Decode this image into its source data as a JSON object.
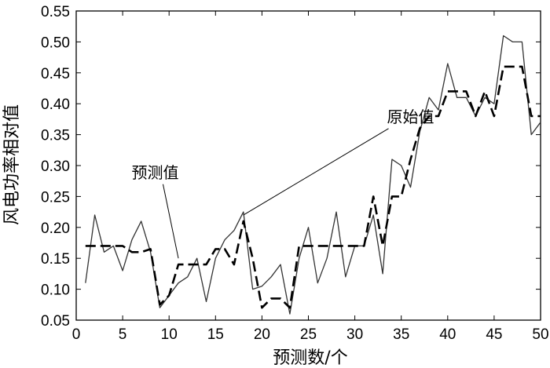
{
  "chart_data": {
    "type": "line",
    "xlabel": "预测数/个",
    "ylabel": "风电功率相对值",
    "xlim": [
      0,
      50
    ],
    "ylim": [
      0.05,
      0.55
    ],
    "xticks": [
      "0",
      "5",
      "10",
      "15",
      "20",
      "25",
      "30",
      "35",
      "40",
      "45",
      "50"
    ],
    "yticks": [
      "0.05",
      "0.10",
      "0.15",
      "0.20",
      "0.25",
      "0.30",
      "0.35",
      "0.40",
      "0.45",
      "0.50",
      "0.55"
    ],
    "grid": false,
    "x": [
      1,
      2,
      3,
      4,
      5,
      6,
      7,
      8,
      9,
      10,
      11,
      12,
      13,
      14,
      15,
      16,
      17,
      18,
      19,
      20,
      21,
      22,
      23,
      24,
      25,
      26,
      27,
      28,
      29,
      30,
      31,
      32,
      33,
      34,
      35,
      36,
      37,
      38,
      39,
      40,
      41,
      42,
      43,
      44,
      45,
      46,
      47,
      48,
      49,
      50
    ],
    "series": [
      {
        "style": "solid",
        "values": [
          0.11,
          0.22,
          0.16,
          0.17,
          0.13,
          0.18,
          0.21,
          0.16,
          0.07,
          0.09,
          0.11,
          0.12,
          0.15,
          0.08,
          0.15,
          0.18,
          0.195,
          0.225,
          0.1,
          0.105,
          0.12,
          0.14,
          0.06,
          0.15,
          0.2,
          0.11,
          0.15,
          0.225,
          0.12,
          0.17,
          0.17,
          0.22,
          0.125,
          0.31,
          0.3,
          0.265,
          0.355,
          0.41,
          0.39,
          0.465,
          0.41,
          0.41,
          0.38,
          0.41,
          0.4,
          0.51,
          0.5,
          0.5,
          0.35,
          0.37
        ]
      },
      {
        "style": "dashed",
        "values": [
          0.17,
          0.17,
          0.17,
          0.17,
          0.17,
          0.16,
          0.16,
          0.165,
          0.075,
          0.09,
          0.14,
          0.14,
          0.14,
          0.14,
          0.165,
          0.165,
          0.14,
          0.21,
          0.15,
          0.07,
          0.085,
          0.085,
          0.07,
          0.17,
          0.17,
          0.17,
          0.17,
          0.17,
          0.17,
          0.17,
          0.17,
          0.25,
          0.17,
          0.25,
          0.25,
          0.31,
          0.36,
          0.38,
          0.38,
          0.42,
          0.42,
          0.42,
          0.38,
          0.42,
          0.38,
          0.46,
          0.46,
          0.46,
          0.38,
          0.38
        ]
      }
    ],
    "annotations": [
      {
        "text": "原始值",
        "x": 36,
        "y": 0.37,
        "target_x": 18,
        "target_y": 0.22
      },
      {
        "text": "预测值",
        "x": 8.5,
        "y": 0.28,
        "target_x": 11,
        "target_y": 0.15
      }
    ]
  }
}
